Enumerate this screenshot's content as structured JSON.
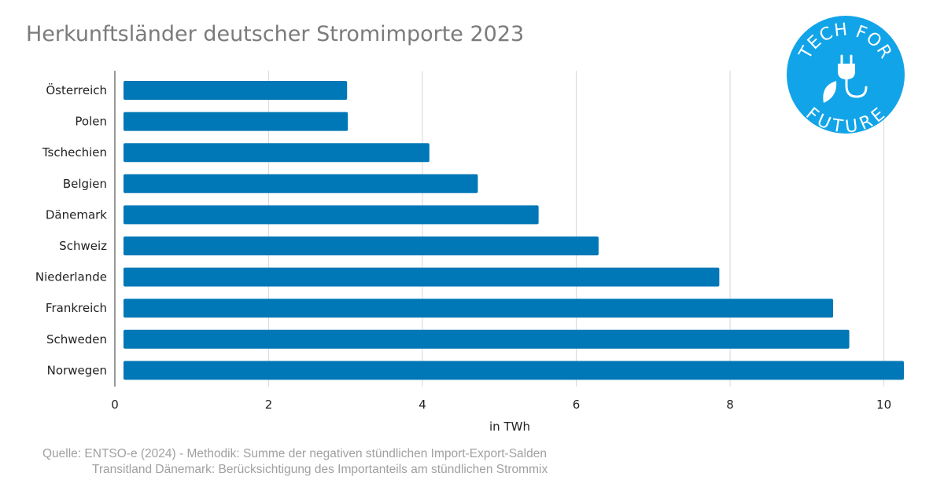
{
  "chart_data": {
    "type": "bar",
    "orientation": "horizontal",
    "title": "Herkunftsländer deutscher Stromimporte 2023",
    "xlabel": "in TWh",
    "ylabel": "",
    "categories": [
      "Österreich",
      "Polen",
      "Tschechien",
      "Belgien",
      "Dänemark",
      "Schweiz",
      "Niederlande",
      "Frankreich",
      "Schweden",
      "Norwegen"
    ],
    "values": [
      3.02,
      3.03,
      4.09,
      4.72,
      5.51,
      6.29,
      7.86,
      9.34,
      9.55,
      10.26
    ],
    "xlim": [
      0,
      10.26
    ],
    "xticks": [
      0,
      2,
      4,
      6,
      8,
      10
    ],
    "grid": "vertical",
    "bar_color": "#0077b6"
  },
  "source": {
    "line1": "Quelle: ENTSO-e (2024) - Methodik: Summe der negativen stündlichen Import-Export-Salden",
    "line2": "Transitland Dänemark: Berücksichtigung des Importanteils am stündlichen Strommix"
  },
  "logo": {
    "text_top": "TECH FOR",
    "text_bottom": "FUTURE",
    "color": "#12a4e8",
    "icon": "plug-leaf-icon"
  }
}
